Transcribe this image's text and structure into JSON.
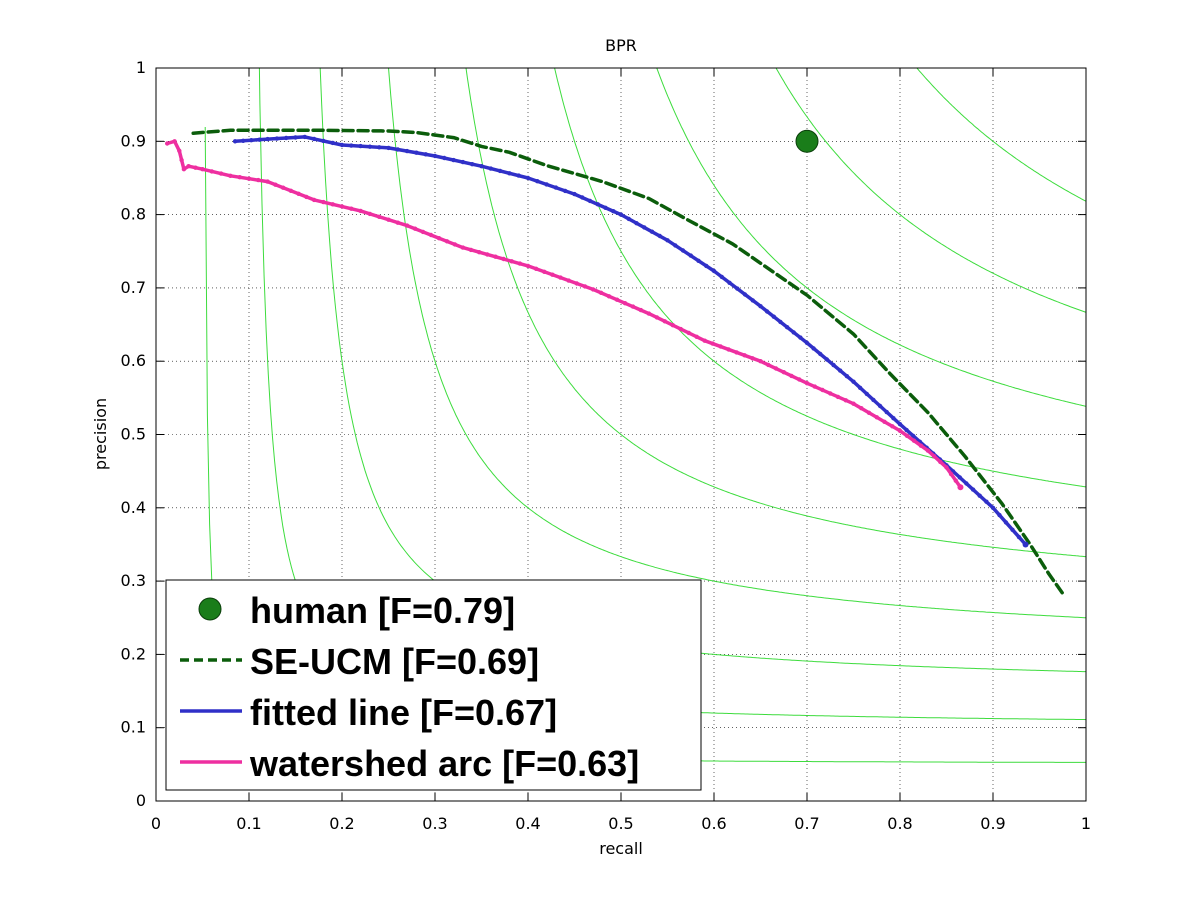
{
  "chart_data": {
    "type": "line",
    "title": "BPR",
    "xlabel": "recall",
    "ylabel": "precision",
    "xlim": [
      0,
      1
    ],
    "ylim": [
      0,
      1
    ],
    "xticks": [
      "0",
      "0.1",
      "0.2",
      "0.3",
      "0.4",
      "0.5",
      "0.6",
      "0.7",
      "0.8",
      "0.9",
      "1"
    ],
    "yticks": [
      "0",
      "0.1",
      "0.2",
      "0.3",
      "0.4",
      "0.5",
      "0.6",
      "0.7",
      "0.8",
      "0.9",
      "1"
    ],
    "grid": true,
    "iso_f_contours": [
      0.1,
      0.2,
      0.3,
      0.4,
      0.5,
      0.6,
      0.7,
      0.8,
      0.9
    ],
    "legend_position": "bottom-left",
    "series": [
      {
        "name": "human [F=0.79]",
        "kind": "point",
        "color": "#1a7d1a",
        "points": [
          [
            0.7,
            0.9
          ]
        ]
      },
      {
        "name": "SE-UCM [F=0.69]",
        "kind": "dashed",
        "color": "#0b5d0b",
        "points": [
          [
            0.04,
            0.911
          ],
          [
            0.08,
            0.915
          ],
          [
            0.12,
            0.915
          ],
          [
            0.18,
            0.915
          ],
          [
            0.25,
            0.914
          ],
          [
            0.28,
            0.912
          ],
          [
            0.32,
            0.905
          ],
          [
            0.35,
            0.893
          ],
          [
            0.38,
            0.885
          ],
          [
            0.42,
            0.867
          ],
          [
            0.48,
            0.845
          ],
          [
            0.53,
            0.822
          ],
          [
            0.57,
            0.794
          ],
          [
            0.62,
            0.76
          ],
          [
            0.66,
            0.725
          ],
          [
            0.7,
            0.69
          ],
          [
            0.75,
            0.637
          ],
          [
            0.79,
            0.582
          ],
          [
            0.83,
            0.53
          ],
          [
            0.87,
            0.47
          ],
          [
            0.91,
            0.405
          ],
          [
            0.94,
            0.35
          ],
          [
            0.96,
            0.31
          ],
          [
            0.975,
            0.283
          ]
        ]
      },
      {
        "name": "fitted line [F=0.67]",
        "kind": "marked",
        "color": "#3030c8",
        "points": [
          [
            0.085,
            0.9
          ],
          [
            0.12,
            0.903
          ],
          [
            0.16,
            0.906
          ],
          [
            0.2,
            0.895
          ],
          [
            0.25,
            0.891
          ],
          [
            0.3,
            0.88
          ],
          [
            0.35,
            0.866
          ],
          [
            0.4,
            0.85
          ],
          [
            0.45,
            0.828
          ],
          [
            0.5,
            0.8
          ],
          [
            0.55,
            0.765
          ],
          [
            0.6,
            0.723
          ],
          [
            0.65,
            0.675
          ],
          [
            0.7,
            0.625
          ],
          [
            0.75,
            0.572
          ],
          [
            0.8,
            0.514
          ],
          [
            0.85,
            0.458
          ],
          [
            0.9,
            0.4
          ],
          [
            0.935,
            0.35
          ]
        ]
      },
      {
        "name": "watershed arc [F=0.63]",
        "kind": "marked",
        "color": "#ee2fa0",
        "points": [
          [
            0.012,
            0.897
          ],
          [
            0.02,
            0.9
          ],
          [
            0.025,
            0.887
          ],
          [
            0.03,
            0.862
          ],
          [
            0.035,
            0.866
          ],
          [
            0.05,
            0.862
          ],
          [
            0.08,
            0.853
          ],
          [
            0.12,
            0.845
          ],
          [
            0.17,
            0.82
          ],
          [
            0.22,
            0.805
          ],
          [
            0.27,
            0.785
          ],
          [
            0.33,
            0.755
          ],
          [
            0.4,
            0.73
          ],
          [
            0.47,
            0.698
          ],
          [
            0.53,
            0.665
          ],
          [
            0.59,
            0.628
          ],
          [
            0.65,
            0.6
          ],
          [
            0.7,
            0.57
          ],
          [
            0.75,
            0.542
          ],
          [
            0.8,
            0.505
          ],
          [
            0.83,
            0.478
          ],
          [
            0.85,
            0.455
          ],
          [
            0.865,
            0.428
          ]
        ]
      }
    ],
    "legend": {
      "entries": [
        "human [F=0.79]",
        "SE-UCM [F=0.69]",
        "fitted line [F=0.67]",
        "watershed arc [F=0.63]"
      ]
    }
  }
}
